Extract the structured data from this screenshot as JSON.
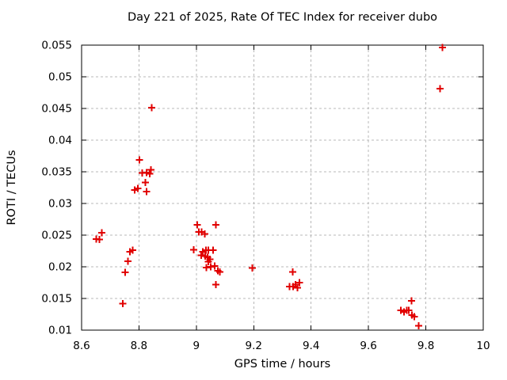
{
  "chart_data": {
    "type": "scatter",
    "title": "Day 221 of 2025, Rate Of TEC Index for receiver dubo",
    "xlabel": "GPS time / hours",
    "ylabel": "ROTI / TECUs",
    "xlim": [
      8.6,
      10
    ],
    "ylim": [
      0.01,
      0.055
    ],
    "xticks": [
      8.6,
      8.8,
      9,
      9.2,
      9.4,
      9.6,
      9.8,
      10
    ],
    "xtick_labels": [
      "8.6",
      "8.8",
      "9",
      "9.2",
      "9.4",
      "9.6",
      "9.8",
      "10"
    ],
    "yticks": [
      0.01,
      0.015,
      0.02,
      0.025,
      0.03,
      0.035,
      0.04,
      0.045,
      0.05,
      0.055
    ],
    "ytick_labels": [
      "0.01",
      "0.015",
      "0.02",
      "0.025",
      "0.03",
      "0.035",
      "0.04",
      "0.045",
      "0.05",
      "0.055"
    ],
    "grid": true,
    "legend": "none",
    "marker": "plus",
    "marker_color": "#e10000",
    "grid_color": "#b8b8b8",
    "axis_color": "#000000",
    "series": [
      {
        "name": "ROTI",
        "points": [
          [
            8.651,
            0.0244
          ],
          [
            8.662,
            0.0243
          ],
          [
            8.67,
            0.0254
          ],
          [
            8.744,
            0.0142
          ],
          [
            8.752,
            0.0191
          ],
          [
            8.761,
            0.0209
          ],
          [
            8.769,
            0.0224
          ],
          [
            8.778,
            0.0226
          ],
          [
            8.785,
            0.0321
          ],
          [
            8.796,
            0.0324
          ],
          [
            8.802,
            0.0369
          ],
          [
            8.811,
            0.0348
          ],
          [
            8.822,
            0.0333
          ],
          [
            8.827,
            0.0349
          ],
          [
            8.827,
            0.0319
          ],
          [
            8.838,
            0.0347
          ],
          [
            8.842,
            0.0353
          ],
          [
            8.845,
            0.0451
          ],
          [
            8.991,
            0.0227
          ],
          [
            9.003,
            0.0266
          ],
          [
            9.008,
            0.0255
          ],
          [
            9.018,
            0.0255
          ],
          [
            9.017,
            0.0218
          ],
          [
            9.022,
            0.0224
          ],
          [
            9.029,
            0.0252
          ],
          [
            9.031,
            0.0217
          ],
          [
            9.033,
            0.0226
          ],
          [
            9.035,
            0.0199
          ],
          [
            9.039,
            0.0215
          ],
          [
            9.042,
            0.0226
          ],
          [
            9.042,
            0.0208
          ],
          [
            9.047,
            0.0212
          ],
          [
            9.05,
            0.02
          ],
          [
            9.058,
            0.0226
          ],
          [
            9.064,
            0.0201
          ],
          [
            9.068,
            0.0266
          ],
          [
            9.068,
            0.0172
          ],
          [
            9.075,
            0.0194
          ],
          [
            9.082,
            0.0192
          ],
          [
            9.195,
            0.0198
          ],
          [
            9.325,
            0.0169
          ],
          [
            9.336,
            0.0192
          ],
          [
            9.337,
            0.0169
          ],
          [
            9.345,
            0.0172
          ],
          [
            9.352,
            0.0167
          ],
          [
            9.359,
            0.0175
          ],
          [
            9.713,
            0.0131
          ],
          [
            9.724,
            0.0129
          ],
          [
            9.733,
            0.0131
          ],
          [
            9.74,
            0.0131
          ],
          [
            9.75,
            0.0146
          ],
          [
            9.752,
            0.0124
          ],
          [
            9.76,
            0.0121
          ],
          [
            9.775,
            0.0107
          ],
          [
            9.849,
            0.0481
          ],
          [
            9.858,
            0.0546
          ]
        ]
      }
    ]
  }
}
